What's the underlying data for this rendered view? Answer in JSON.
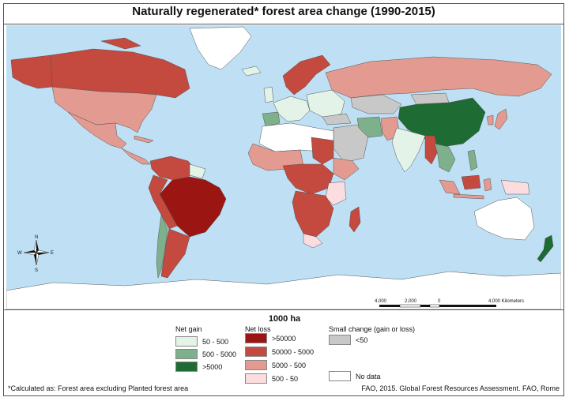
{
  "title": "Naturally regenerated* forest area change (1990-2015)",
  "unit_title": "1000 ha",
  "legend": {
    "net_gain": {
      "label": "Net gain",
      "items": [
        {
          "label": "50 - 500",
          "color": "#e3f3e8"
        },
        {
          "label": "500 - 5000",
          "color": "#7fb08c"
        },
        {
          "label": ">5000",
          "color": "#1e6b34"
        }
      ]
    },
    "net_loss": {
      "label": "Net loss",
      "items": [
        {
          "label": ">50000",
          "color": "#9b1512"
        },
        {
          "label": "50000 - 5000",
          "color": "#c4493e"
        },
        {
          "label": "5000 - 500",
          "color": "#e39a90"
        },
        {
          "label": "500 - 50",
          "color": "#fbdde0"
        }
      ]
    },
    "small_change": {
      "label": "Small change (gain or loss)",
      "items": [
        {
          "label": "<50",
          "color": "#c8c8c8"
        }
      ]
    },
    "no_data": {
      "label": "No data",
      "color": "#ffffff"
    }
  },
  "scale_bar": {
    "labels": [
      "4,000",
      "2,000",
      "0",
      "4,000 Kilometers"
    ]
  },
  "compass": {
    "n": "N",
    "s": "S",
    "e": "E",
    "w": "W"
  },
  "footnote": "*Calculated as: Forest area excluding Planted forest area",
  "source": "FAO, 2015. Global Forest Resources Assessment. FAO, Rome",
  "colors": {
    "ocean": "#bfe0f4",
    "no_data": "#ffffff",
    "small_change": "#c8c8c8",
    "gain_low": "#e3f3e8",
    "gain_mid": "#7fb08c",
    "gain_high": "#1e6b34",
    "loss_very_high": "#9b1512",
    "loss_high": "#c4493e",
    "loss_mid": "#e39a90",
    "loss_low": "#fbdde0"
  }
}
